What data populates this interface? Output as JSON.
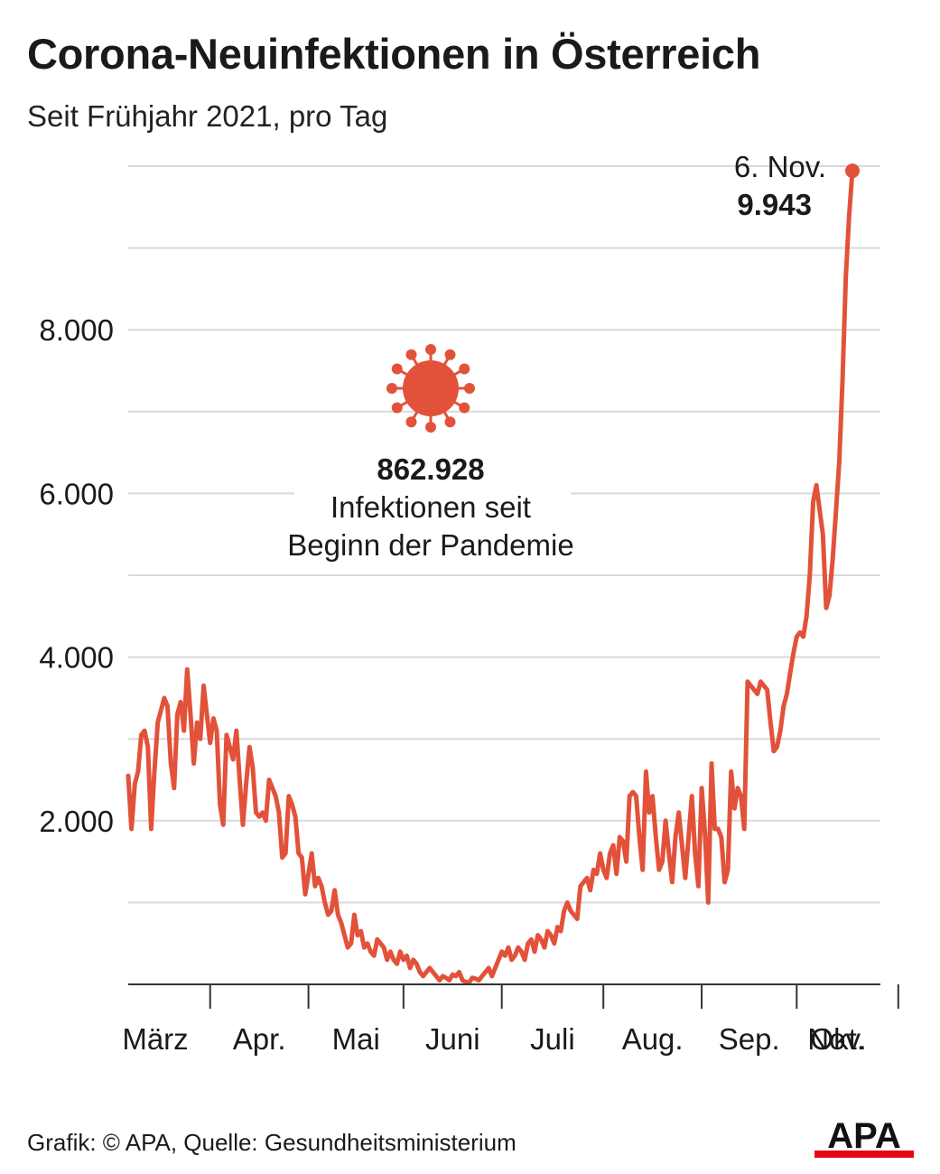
{
  "title": "Corona-Neuinfektionen in Österreich",
  "subtitle": "Seit Frühjahr 2021, pro Tag",
  "footer": "Grafik: © APA, Quelle: Gesundheitsministerium",
  "logo_text": "APA",
  "colors": {
    "line": "#e2523a",
    "grid": "#d9d9d9",
    "axis": "#333333",
    "text": "#1a1a1a",
    "logo_red": "#e30613"
  },
  "annotation": {
    "icon": "virus-icon",
    "total": "862.928",
    "line1": "Infektionen seit",
    "line2": "Beginn der Pandemie"
  },
  "last_point": {
    "label": "6. Nov.",
    "value_label": "9.943"
  },
  "chart_data": {
    "type": "line",
    "title": "Corona-Neuinfektionen in Österreich",
    "subtitle": "Seit Frühjahr 2021, pro Tag",
    "xlabel": "",
    "ylabel": "",
    "ylim": [
      0,
      10000
    ],
    "yticks": [
      {
        "value": 2000,
        "label": "2.000"
      },
      {
        "value": 4000,
        "label": "4.000"
      },
      {
        "value": 6000,
        "label": "6.000"
      },
      {
        "value": 8000,
        "label": "8.000"
      }
    ],
    "gridlines": [
      1000,
      2000,
      3000,
      4000,
      5000,
      6000,
      7000,
      8000,
      9000,
      10000
    ],
    "xticks": [
      {
        "label": "März",
        "index": 0
      },
      {
        "label": "Apr.",
        "index": 22
      },
      {
        "label": "Mai",
        "index": 51
      },
      {
        "label": "Juni",
        "index": 80
      },
      {
        "label": "Juli",
        "index": 111
      },
      {
        "label": "Aug.",
        "index": 141
      },
      {
        "label": "Sep.",
        "index": 171
      },
      {
        "label": "Okt.",
        "index": 201
      },
      {
        "label": "Nov.",
        "index": 230
      }
    ],
    "month_boundaries": [
      25,
      55,
      84,
      114,
      145,
      175,
      204,
      235
    ],
    "grid": true,
    "legend": "none",
    "series": [
      {
        "values": [
          2550,
          1900,
          2450,
          2600,
          3050,
          3100,
          2900,
          1900,
          2600,
          3200,
          3350,
          3500,
          3400,
          2700,
          2400,
          3300,
          3450,
          3100,
          3850,
          3300,
          2700,
          3200,
          3000,
          3650,
          3300,
          2950,
          3250,
          3100,
          2200,
          1950,
          3050,
          2900,
          2750,
          3100,
          2500,
          1950,
          2450,
          2900,
          2650,
          2100,
          2050,
          2100,
          2000,
          2500,
          2400,
          2300,
          2100,
          1550,
          1600,
          2300,
          2200,
          2050,
          1600,
          1550,
          1100,
          1350,
          1600,
          1200,
          1300,
          1200,
          1000,
          850,
          900,
          1150,
          850,
          750,
          600,
          450,
          500,
          850,
          600,
          650,
          450,
          500,
          400,
          350,
          550,
          500,
          450,
          300,
          400,
          300,
          250,
          400,
          300,
          350,
          200,
          300,
          250,
          150,
          100,
          150,
          200,
          150,
          100,
          50,
          100,
          80,
          50,
          120,
          100,
          150,
          50,
          30,
          20,
          80,
          70,
          50,
          100,
          150,
          200,
          100,
          200,
          300,
          400,
          350,
          450,
          300,
          350,
          450,
          400,
          300,
          500,
          550,
          400,
          600,
          550,
          450,
          650,
          600,
          500,
          700,
          650,
          900,
          1000,
          900,
          850,
          800,
          1200,
          1250,
          1300,
          1150,
          1400,
          1350,
          1600,
          1400,
          1300,
          1600,
          1700,
          1350,
          1800,
          1750,
          1500,
          2300,
          2350,
          2300,
          1800,
          1400,
          2600,
          2100,
          2300,
          1800,
          1400,
          1500,
          2000,
          1600,
          1250,
          1800,
          2100,
          1700,
          1300,
          1800,
          2300,
          1600,
          1200,
          2400,
          1850,
          1000,
          2700,
          1900,
          1900,
          1800,
          1250,
          1400,
          2600,
          2150,
          2400,
          2300,
          1900,
          3700,
          3650,
          3600,
          3550,
          3700,
          3650,
          3600,
          3200,
          2850,
          2900,
          3100,
          3400,
          3550,
          3800,
          4050,
          4250,
          4300,
          4250,
          4500,
          5000,
          5900,
          6100,
          5800,
          5500,
          4600,
          4750,
          5200,
          5800,
          6400,
          7400,
          8650,
          9400,
          9943
        ]
      }
    ]
  }
}
